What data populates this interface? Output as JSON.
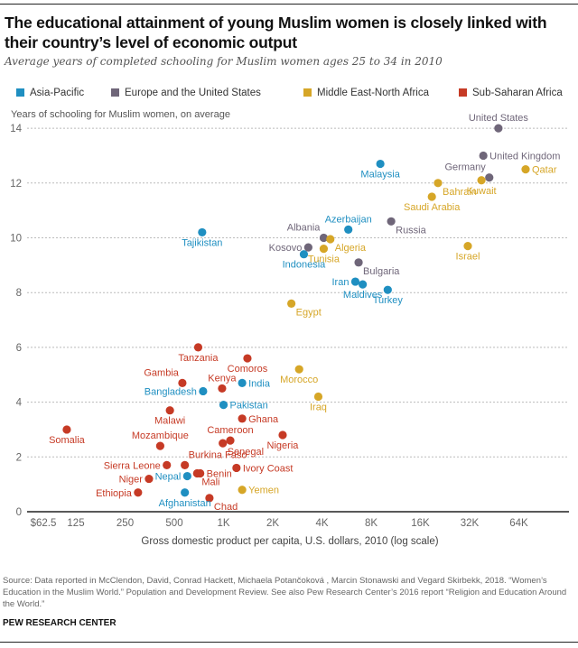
{
  "title": "The educational attainment of young Muslim women is closely linked with their country’s level of economic output",
  "subtitle": "Average years of completed schooling for Muslim women ages 25 to 34 in 2010",
  "legend": [
    {
      "name": "Asia-Pacific",
      "color": "#1f8fc1"
    },
    {
      "name": "Europe and the United States",
      "color": "#6f6679"
    },
    {
      "name": "Middle East-North Africa",
      "color": "#d6a627"
    },
    {
      "name": "Sub-Saharan Africa",
      "color": "#c63a25"
    }
  ],
  "source": "Source: Data reported in McClendon, David, Conrad Hackett, Michaela Potančoková , Marcin Stonawski and Vegard Skirbekk, 2018. “Women’s Education in the Muslim World.” Population and Development Review. See also Pew Research Center’s 2016 report “Religion and Education Around the World.”",
  "brand": "PEW RESEARCH CENTER",
  "chart_data": {
    "type": "scatter",
    "title": "The educational attainment of young Muslim women is closely linked with their country’s level of economic output",
    "xlabel": "Gross domestic product per capita, U.S. dollars, 2010 (log scale)",
    "ylabel": "Years of schooling for Muslim women, on average",
    "xscale": "log2",
    "xlim": [
      62.5,
      100000
    ],
    "ylim": [
      0,
      14
    ],
    "xticks": [
      62.5,
      125,
      250,
      500,
      1000,
      2000,
      4000,
      8000,
      16000,
      32000,
      64000
    ],
    "xtick_labels": [
      "$62.5",
      "125",
      "250",
      "500",
      "1K",
      "2K",
      "4K",
      "8K",
      "16K",
      "32K",
      "64K"
    ],
    "yticks": [
      0,
      2,
      4,
      6,
      8,
      10,
      12,
      14
    ],
    "ytick_labels": [
      "0",
      "2",
      "4",
      "6",
      "8",
      "10",
      "12",
      "14"
    ],
    "grid": "horizontal-dotted",
    "legend_position": "top",
    "series": [
      {
        "name": "Asia-Pacific",
        "color": "#1f8fc1",
        "points": [
          {
            "label": "Malaysia",
            "gdp": 9100,
            "years": 12.7,
            "lpos": "below"
          },
          {
            "label": "Azerbaijan",
            "gdp": 5800,
            "years": 10.3,
            "lpos": "above"
          },
          {
            "label": "Tajikistan",
            "gdp": 740,
            "years": 10.2,
            "lpos": "below"
          },
          {
            "label": "Indonesia",
            "gdp": 3100,
            "years": 9.4,
            "lpos": "below"
          },
          {
            "label": "Iran",
            "gdp": 6400,
            "years": 8.4,
            "lpos": "left"
          },
          {
            "label": "Maldives",
            "gdp": 7100,
            "years": 8.3,
            "lpos": "below"
          },
          {
            "label": "Turkey",
            "gdp": 10100,
            "years": 8.1,
            "lpos": "below"
          },
          {
            "label": "India",
            "gdp": 1300,
            "years": 4.7,
            "lpos": "right"
          },
          {
            "label": "Bangladesh",
            "gdp": 750,
            "years": 4.4,
            "lpos": "left"
          },
          {
            "label": "Pakistan",
            "gdp": 1000,
            "years": 3.9,
            "lpos": "right"
          },
          {
            "label": "Nepal",
            "gdp": 600,
            "years": 1.3,
            "lpos": "left"
          },
          {
            "label": "Afghanistan",
            "gdp": 580,
            "years": 0.7,
            "lpos": "below"
          }
        ]
      },
      {
        "name": "Europe and the United States",
        "color": "#6f6679",
        "points": [
          {
            "label": "United States",
            "gdp": 48000,
            "years": 14.0,
            "lpos": "above"
          },
          {
            "label": "United Kingdom",
            "gdp": 38800,
            "years": 13.0,
            "lpos": "right"
          },
          {
            "label": "Germany",
            "gdp": 42200,
            "years": 12.2,
            "lpos": "aboveleft"
          },
          {
            "label": "Russia",
            "gdp": 10600,
            "years": 10.6,
            "lpos": "belowright"
          },
          {
            "label": "Albania",
            "gdp": 4100,
            "years": 10.0,
            "lpos": "aboveleft"
          },
          {
            "label": "Kosovo",
            "gdp": 3300,
            "years": 9.65,
            "lpos": "left"
          },
          {
            "label": "Bulgaria",
            "gdp": 6700,
            "years": 9.1,
            "lpos": "belowright"
          }
        ]
      },
      {
        "name": "Middle East-North Africa",
        "color": "#d6a627",
        "points": [
          {
            "label": "Qatar",
            "gdp": 70400,
            "years": 12.5,
            "lpos": "right"
          },
          {
            "label": "Kuwait",
            "gdp": 37800,
            "years": 12.1,
            "lpos": "below"
          },
          {
            "label": "Bahrain",
            "gdp": 20500,
            "years": 12.0,
            "lpos": "belowright"
          },
          {
            "label": "Saudi Arabia",
            "gdp": 18800,
            "years": 11.5,
            "lpos": "below"
          },
          {
            "label": "Algeria",
            "gdp": 4500,
            "years": 9.95,
            "lpos": "belowright"
          },
          {
            "label": "Tunisia",
            "gdp": 4100,
            "years": 9.6,
            "lpos": "below"
          },
          {
            "label": "Israel",
            "gdp": 31200,
            "years": 9.7,
            "lpos": "below"
          },
          {
            "label": "Egypt",
            "gdp": 2600,
            "years": 7.6,
            "lpos": "belowright"
          },
          {
            "label": "Morocco",
            "gdp": 2900,
            "years": 5.2,
            "lpos": "below"
          },
          {
            "label": "Iraq",
            "gdp": 3800,
            "years": 4.2,
            "lpos": "below"
          },
          {
            "label": "Yemen",
            "gdp": 1300,
            "years": 0.8,
            "lpos": "right"
          }
        ]
      },
      {
        "name": "Sub-Saharan Africa",
        "color": "#c63a25",
        "points": [
          {
            "label": "Tanzania",
            "gdp": 700,
            "years": 6.0,
            "lpos": "below"
          },
          {
            "label": "Comoros",
            "gdp": 1400,
            "years": 5.6,
            "lpos": "below"
          },
          {
            "label": "Gambia",
            "gdp": 560,
            "years": 4.7,
            "lpos": "aboveleft"
          },
          {
            "label": "Kenya",
            "gdp": 980,
            "years": 4.5,
            "lpos": "above"
          },
          {
            "label": "Malawi",
            "gdp": 470,
            "years": 3.7,
            "lpos": "below"
          },
          {
            "label": "Ghana",
            "gdp": 1300,
            "years": 3.4,
            "lpos": "right"
          },
          {
            "label": "Somalia",
            "gdp": 110,
            "years": 3.0,
            "lpos": "below"
          },
          {
            "label": "Nigeria",
            "gdp": 2300,
            "years": 2.8,
            "lpos": "below"
          },
          {
            "label": "Cameroon",
            "gdp": 1100,
            "years": 2.6,
            "lpos": "above"
          },
          {
            "label": "Senegal",
            "gdp": 990,
            "years": 2.5,
            "lpos": "belowright"
          },
          {
            "label": "Mozambique",
            "gdp": 410,
            "years": 2.4,
            "lpos": "above"
          },
          {
            "label": "Burkina Faso",
            "gdp": 580,
            "years": 1.7,
            "lpos": "aboveright"
          },
          {
            "label": "Sierra Leone",
            "gdp": 450,
            "years": 1.7,
            "lpos": "left"
          },
          {
            "label": "Ivory Coast",
            "gdp": 1200,
            "years": 1.6,
            "lpos": "right"
          },
          {
            "label": "Benin",
            "gdp": 720,
            "years": 1.4,
            "lpos": "right"
          },
          {
            "label": "Mali",
            "gdp": 690,
            "years": 1.4,
            "lpos": "belowright"
          },
          {
            "label": "Niger",
            "gdp": 350,
            "years": 1.2,
            "lpos": "left"
          },
          {
            "label": "Ethiopia",
            "gdp": 300,
            "years": 0.7,
            "lpos": "left"
          },
          {
            "label": "Chad",
            "gdp": 820,
            "years": 0.5,
            "lpos": "belowright"
          }
        ]
      }
    ]
  }
}
